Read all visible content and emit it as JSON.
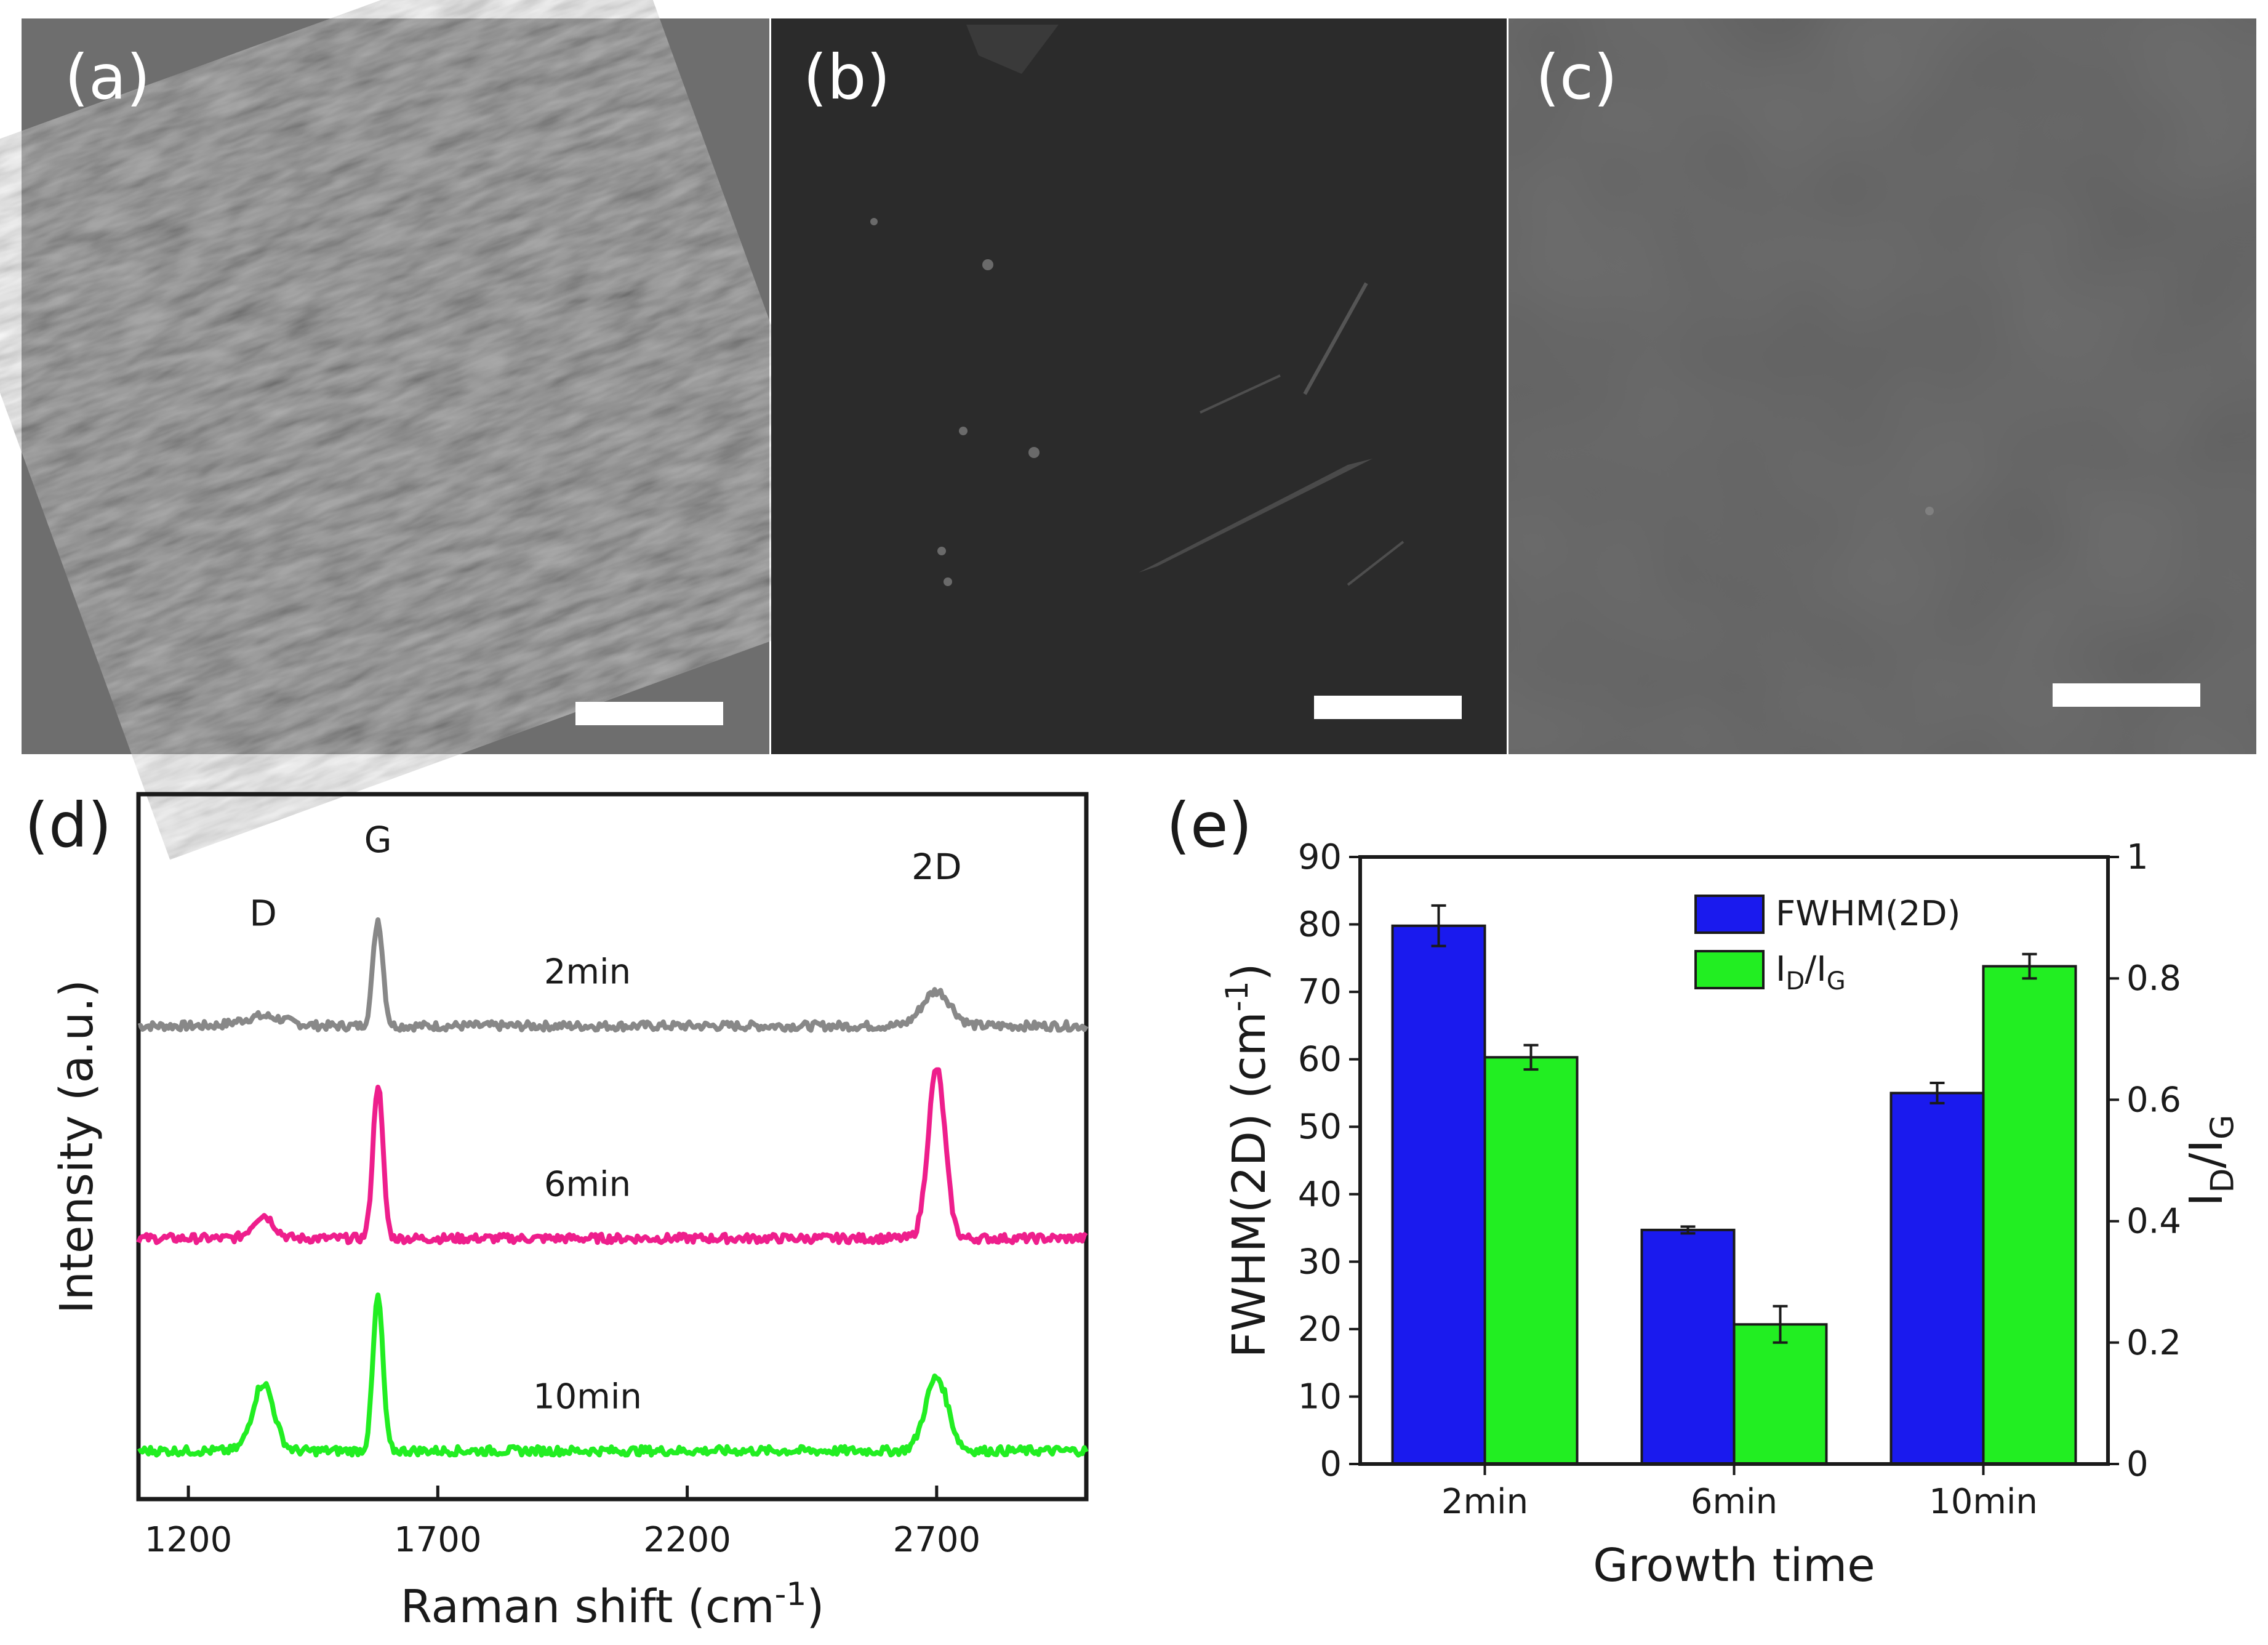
{
  "figure": {
    "panels": [
      {
        "id": "a",
        "label": "(a)",
        "tone": "#6e6e6e",
        "texture": "dense-textured"
      },
      {
        "id": "b",
        "label": "(b)",
        "tone": "#2b2b2b",
        "texture": "smooth-with-wrinkles"
      },
      {
        "id": "c",
        "label": "(c)",
        "tone": "#5c5c5c",
        "texture": "uniform"
      }
    ],
    "label_d": "(d)",
    "label_e": "(e)"
  },
  "chart_data": [
    {
      "type": "line",
      "panel": "d",
      "xlabel_main": "Raman shift (cm",
      "xlabel_sup": "-1",
      "xlabel_end": ")",
      "ylabel": "Intensity (a.u.)",
      "xlim": [
        1100,
        3000
      ],
      "xticks": [
        1200,
        1700,
        2200,
        2700
      ],
      "peak_labels": [
        {
          "text": "D",
          "x": 1350
        },
        {
          "text": "G",
          "x": 1580
        },
        {
          "text": "2D",
          "x": 2700
        }
      ],
      "series": [
        {
          "name": "2min",
          "color": "#888888",
          "offset": 2.2,
          "peaks": [
            {
              "x": 1350,
              "h": 0.05,
              "w": 60
            },
            {
              "x": 1580,
              "h": 0.55,
              "w": 14
            },
            {
              "x": 2700,
              "h": 0.18,
              "w": 40
            }
          ]
        },
        {
          "name": "6min",
          "color": "#ee1e8c",
          "offset": 1.1,
          "peaks": [
            {
              "x": 1350,
              "h": 0.12,
              "w": 30
            },
            {
              "x": 1580,
              "h": 0.8,
              "w": 14
            },
            {
              "x": 2700,
              "h": 0.88,
              "w": 24
            }
          ]
        },
        {
          "name": "10min",
          "color": "#22ee22",
          "offset": 0.0,
          "peaks": [
            {
              "x": 1350,
              "h": 0.35,
              "w": 30
            },
            {
              "x": 1580,
              "h": 0.8,
              "w": 14
            },
            {
              "x": 2700,
              "h": 0.38,
              "w": 32
            }
          ]
        }
      ]
    },
    {
      "type": "bar",
      "panel": "e",
      "categories": [
        "2min",
        "6min",
        "10min"
      ],
      "xlabel": "Growth time",
      "ylabel_left_main": "FWHM(2D) (cm",
      "ylabel_left_sup": "-1",
      "ylabel_left_end": ")",
      "ylim_left": [
        0,
        90
      ],
      "yticks_left": [
        0,
        10,
        20,
        30,
        40,
        50,
        60,
        70,
        80,
        90
      ],
      "ylabel_right": "ID/IG",
      "ylim_right": [
        0,
        1
      ],
      "yticks_right": [
        0,
        0.2,
        0.4,
        0.6,
        0.8,
        1
      ],
      "ytick_labels_right": [
        "0",
        "0.2",
        "0.4",
        "0.6",
        "0.8",
        "1"
      ],
      "legend_position": "top-right",
      "series": [
        {
          "name": "FWHM(2D)",
          "axis": "left",
          "color": "#1a1aee",
          "values": [
            79.8,
            34.7,
            55.0
          ],
          "errors": [
            3.0,
            0.5,
            1.5
          ]
        },
        {
          "name": "ID/IG",
          "axis": "right",
          "color": "#22ee22",
          "values": [
            0.67,
            0.23,
            0.82
          ],
          "errors": [
            0.02,
            0.03,
            0.02
          ]
        }
      ]
    }
  ]
}
